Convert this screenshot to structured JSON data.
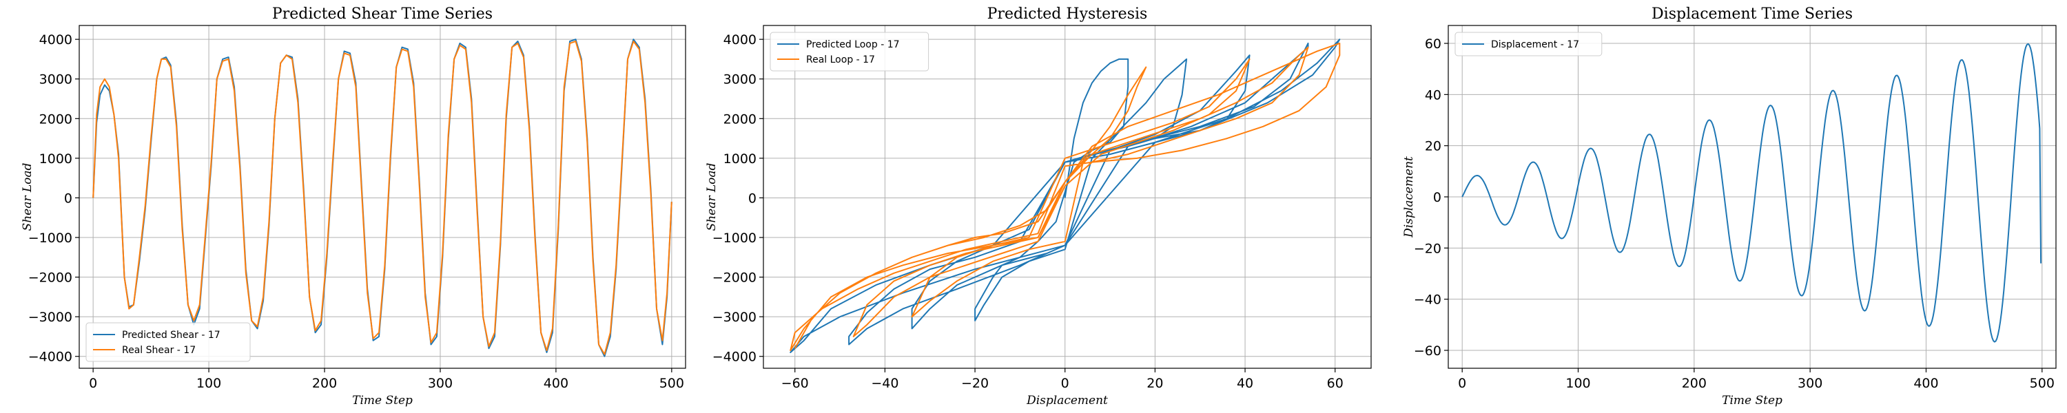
{
  "chart_data": [
    {
      "type": "line",
      "title": "Predicted Shear Time Series",
      "xlabel": "Time Step",
      "ylabel": "Shear Load",
      "xlim": [
        -12,
        512
      ],
      "ylim": [
        -4300,
        4350
      ],
      "xticks": [
        0,
        100,
        200,
        300,
        400,
        500
      ],
      "yticks": [
        -4000,
        -3000,
        -2000,
        -1000,
        0,
        1000,
        2000,
        3000,
        4000
      ],
      "xtick_labels": [
        "0",
        "100",
        "200",
        "300",
        "400",
        "500"
      ],
      "ytick_labels": [
        "−4000",
        "−3000",
        "−2000",
        "−1000",
        "0",
        "1000",
        "2000",
        "3000",
        "4000"
      ],
      "grid": true,
      "legend_position": "lower-left",
      "series": [
        {
          "name": "Predicted Shear - 17",
          "color": "#1f77b4",
          "x": [
            0,
            3,
            6,
            10,
            14,
            18,
            22,
            27,
            31,
            35,
            40,
            45,
            50,
            55,
            59,
            63,
            67,
            72,
            77,
            82,
            87,
            92,
            97,
            102,
            107,
            112,
            117,
            122,
            127,
            132,
            137,
            142,
            147,
            152,
            157,
            162,
            167,
            172,
            177,
            182,
            187,
            192,
            197,
            202,
            207,
            212,
            217,
            222,
            227,
            232,
            237,
            242,
            247,
            252,
            257,
            262,
            267,
            272,
            277,
            282,
            287,
            292,
            297,
            302,
            307,
            312,
            317,
            322,
            327,
            332,
            337,
            342,
            347,
            352,
            357,
            362,
            367,
            372,
            377,
            382,
            387,
            392,
            397,
            402,
            407,
            412,
            417,
            422,
            427,
            432,
            437,
            442,
            447,
            452,
            457,
            462,
            467,
            472,
            477,
            482,
            487,
            492,
            496,
            500
          ],
          "y": [
            0,
            1900,
            2600,
            2850,
            2700,
            2100,
            1100,
            -2000,
            -2750,
            -2700,
            -1600,
            -300,
            1400,
            3000,
            3500,
            3550,
            3350,
            1900,
            -700,
            -2700,
            -3200,
            -2800,
            -1000,
            800,
            3000,
            3500,
            3550,
            2800,
            800,
            -1800,
            -3100,
            -3300,
            -2600,
            -700,
            2000,
            3400,
            3600,
            3550,
            2500,
            200,
            -2500,
            -3400,
            -3200,
            -1500,
            800,
            3000,
            3700,
            3650,
            2900,
            300,
            -2300,
            -3600,
            -3500,
            -1800,
            1000,
            3300,
            3800,
            3750,
            2900,
            400,
            -2400,
            -3700,
            -3500,
            -1500,
            1500,
            3500,
            3900,
            3800,
            2500,
            -300,
            -3000,
            -3800,
            -3500,
            -1200,
            2000,
            3800,
            3950,
            3600,
            1800,
            -1000,
            -3400,
            -3900,
            -3400,
            -800,
            2700,
            3950,
            4000,
            3500,
            1500,
            -1500,
            -3700,
            -4000,
            -3500,
            -1800,
            800,
            3500,
            4000,
            3800,
            2500,
            200,
            -2800,
            -3700,
            -2500,
            -100
          ]
        },
        {
          "name": "Real Shear - 17",
          "color": "#ff7f0e",
          "x": [
            0,
            3,
            6,
            10,
            14,
            18,
            22,
            27,
            31,
            35,
            40,
            45,
            50,
            55,
            59,
            63,
            67,
            72,
            77,
            82,
            87,
            92,
            97,
            102,
            107,
            112,
            117,
            122,
            127,
            132,
            137,
            142,
            147,
            152,
            157,
            162,
            167,
            172,
            177,
            182,
            187,
            192,
            197,
            202,
            207,
            212,
            217,
            222,
            227,
            232,
            237,
            242,
            247,
            252,
            257,
            262,
            267,
            272,
            277,
            282,
            287,
            292,
            297,
            302,
            307,
            312,
            317,
            322,
            327,
            332,
            337,
            342,
            347,
            352,
            357,
            362,
            367,
            372,
            377,
            382,
            387,
            392,
            397,
            402,
            407,
            412,
            417,
            422,
            427,
            432,
            437,
            442,
            447,
            452,
            457,
            462,
            467,
            472,
            477,
            482,
            487,
            492,
            496,
            500
          ],
          "y": [
            0,
            2100,
            2800,
            3000,
            2800,
            2100,
            1000,
            -2000,
            -2800,
            -2700,
            -1500,
            -200,
            1500,
            3000,
            3500,
            3500,
            3300,
            1800,
            -800,
            -2700,
            -3100,
            -2700,
            -900,
            900,
            3000,
            3450,
            3500,
            2700,
            700,
            -1900,
            -3100,
            -3250,
            -2500,
            -600,
            2000,
            3400,
            3600,
            3500,
            2400,
            100,
            -2500,
            -3350,
            -3100,
            -1400,
            900,
            3000,
            3650,
            3600,
            2800,
            200,
            -2400,
            -3550,
            -3400,
            -1700,
            1100,
            3300,
            3750,
            3700,
            2800,
            300,
            -2500,
            -3650,
            -3400,
            -1400,
            1600,
            3500,
            3850,
            3750,
            2400,
            -400,
            -3000,
            -3750,
            -3400,
            -1100,
            2100,
            3800,
            3900,
            3550,
            1700,
            -1100,
            -3400,
            -3850,
            -3300,
            -700,
            2800,
            3900,
            3950,
            3450,
            1400,
            -1600,
            -3700,
            -3950,
            -3400,
            -1700,
            900,
            3500,
            3950,
            3750,
            2400,
            100,
            -2800,
            -3600,
            -2400,
            -100
          ]
        }
      ]
    },
    {
      "type": "line",
      "title": "Predicted Hysteresis",
      "xlabel": "Displacement",
      "ylabel": "Shear Load",
      "xlim": [
        -67,
        68
      ],
      "ylim": [
        -4300,
        4350
      ],
      "xticks": [
        -60,
        -40,
        -20,
        0,
        20,
        40,
        60
      ],
      "yticks": [
        -4000,
        -3000,
        -2000,
        -1000,
        0,
        1000,
        2000,
        3000,
        4000
      ],
      "xtick_labels": [
        "−60",
        "−40",
        "−20",
        "0",
        "20",
        "40",
        "60"
      ],
      "ytick_labels": [
        "−4000",
        "−3000",
        "−2000",
        "−1000",
        "0",
        "1000",
        "2000",
        "3000",
        "4000"
      ],
      "grid": true,
      "legend_position": "top-left",
      "series": [
        {
          "name": "Predicted Loop - 17",
          "color": "#1f77b4",
          "x": [
            0,
            2,
            4,
            6,
            8,
            10,
            12,
            14,
            14,
            13,
            10,
            6,
            2,
            -2,
            -6,
            -10,
            -14,
            -16,
            -18,
            -20,
            -20,
            -18,
            -14,
            -8,
            0,
            6,
            12,
            18,
            22,
            26,
            27,
            26,
            24,
            20,
            14,
            6,
            0,
            -8,
            -16,
            -24,
            -30,
            -34,
            -34,
            -30,
            -24,
            -14,
            -4,
            0,
            10,
            20,
            30,
            38,
            41,
            40,
            36,
            30,
            20,
            10,
            0,
            -10,
            -20,
            -30,
            -38,
            -44,
            -48,
            -48,
            -44,
            -36,
            -24,
            -10,
            0,
            14,
            28,
            40,
            48,
            54,
            54,
            50,
            42,
            30,
            16,
            0,
            -16,
            -30,
            -42,
            -52,
            -58,
            -61,
            -58,
            -50,
            -36,
            -20,
            0,
            20,
            36,
            48,
            56,
            61,
            60,
            55,
            45,
            30,
            10,
            0
          ],
          "y": [
            0,
            1500,
            2400,
            2900,
            3200,
            3400,
            3500,
            3500,
            2800,
            1800,
            1400,
            1200,
            900,
            -600,
            -1100,
            -1500,
            -1700,
            -2000,
            -2400,
            -2800,
            -3100,
            -2700,
            -2000,
            -1600,
            -1300,
            1000,
            1700,
            2400,
            3000,
            3400,
            3500,
            2600,
            1800,
            1500,
            1300,
            1100,
            900,
            -800,
            -1200,
            -1600,
            -2100,
            -2800,
            -3300,
            -2800,
            -2200,
            -1700,
            -1400,
            -1200,
            1200,
            1600,
            2200,
            3200,
            3600,
            2700,
            2000,
            1700,
            1500,
            1200,
            900,
            -1100,
            -1500,
            -1800,
            -2300,
            -2900,
            -3500,
            -3700,
            -3300,
            -2800,
            -2300,
            -1700,
            -1200,
            1300,
            1800,
            2400,
            3200,
            3800,
            3900,
            3000,
            2300,
            1800,
            1400,
            900,
            -1200,
            -1700,
            -2200,
            -2800,
            -3600,
            -3900,
            -3500,
            -3000,
            -2400,
            -1800,
            -1200,
            1400,
            2000,
            2700,
            3400,
            4000,
            3800,
            3100,
            2400,
            1700,
            1100,
            900
          ]
        },
        {
          "name": "Real Loop - 17",
          "color": "#ff7f0e",
          "x": [
            -60,
            -56,
            -50,
            -42,
            -34,
            -26,
            -18,
            -10,
            -4,
            0,
            6,
            14,
            24,
            34,
            42,
            50,
            56,
            61,
            61,
            58,
            52,
            44,
            36,
            26,
            16,
            6,
            0,
            -6,
            -14,
            -22,
            -30,
            -38,
            -46,
            -54,
            -60,
            -61,
            -58,
            -52,
            -44,
            -36,
            -26,
            -16,
            -6,
            0,
            6,
            14,
            22,
            30,
            38,
            46,
            52,
            54,
            52,
            46,
            38,
            30,
            22,
            14,
            6,
            0,
            -6,
            -14,
            -22,
            -30,
            -38,
            -44,
            -47,
            -44,
            -38,
            -30,
            -22,
            -14,
            -6,
            0,
            8,
            16,
            24,
            32,
            38,
            41,
            38,
            32,
            24,
            16,
            8,
            0,
            -8,
            -16,
            -24,
            -30,
            -34,
            -30,
            -24,
            -16,
            -8,
            0,
            4,
            10,
            14,
            16,
            18,
            14,
            10,
            6,
            0,
            -6,
            -14,
            -20,
            -26
          ],
          "y": [
            -3800,
            -3000,
            -2400,
            -1900,
            -1500,
            -1200,
            -1000,
            -700,
            -300,
            400,
            1300,
            1800,
            2200,
            2600,
            3000,
            3400,
            3700,
            3900,
            3600,
            2800,
            2200,
            1800,
            1500,
            1200,
            1000,
            900,
            800,
            -900,
            -1100,
            -1300,
            -1600,
            -1900,
            -2300,
            -2800,
            -3400,
            -3850,
            -3300,
            -2500,
            -2000,
            -1700,
            -1400,
            -1200,
            -1000,
            400,
            1100,
            1400,
            1700,
            2000,
            2400,
            2900,
            3600,
            3800,
            3100,
            2400,
            2000,
            1700,
            1400,
            1100,
            900,
            300,
            -1000,
            -1200,
            -1400,
            -1700,
            -2100,
            -2700,
            -3500,
            -3200,
            -2500,
            -2000,
            -1700,
            -1400,
            -1100,
            300,
            1100,
            1400,
            1700,
            2100,
            2700,
            3500,
            3000,
            2300,
            1900,
            1600,
            1300,
            1000,
            -1000,
            -1200,
            -1500,
            -2000,
            -3000,
            -2600,
            -2100,
            -1600,
            -1300,
            -1100,
            900,
            1500,
            2200,
            2800,
            3300,
            2600,
            1800,
            1200,
            400,
            -600,
            -900,
            -1000,
            -1200
          ]
        }
      ]
    },
    {
      "type": "line",
      "title": "Displacement Time Series",
      "xlabel": "Time Step",
      "ylabel": "Displacement",
      "xlim": [
        -12,
        512
      ],
      "ylim": [
        -67,
        67
      ],
      "xticks": [
        0,
        100,
        200,
        300,
        400,
        500
      ],
      "yticks": [
        -60,
        -40,
        -20,
        0,
        20,
        40,
        60
      ],
      "xtick_labels": [
        "0",
        "100",
        "200",
        "300",
        "400",
        "500"
      ],
      "ytick_labels": [
        "−60",
        "−40",
        "−20",
        "0",
        "20",
        "40",
        "60"
      ],
      "grid": true,
      "legend_position": "top-left",
      "series": [
        {
          "name": "Displacement - 17",
          "color": "#1f77b4",
          "function": "sine_sweep",
          "n_points": 500,
          "amplitude_start": 7,
          "amplitude_end": 61,
          "period_start": 48,
          "period_end": 58,
          "final_value": -26
        }
      ]
    }
  ]
}
